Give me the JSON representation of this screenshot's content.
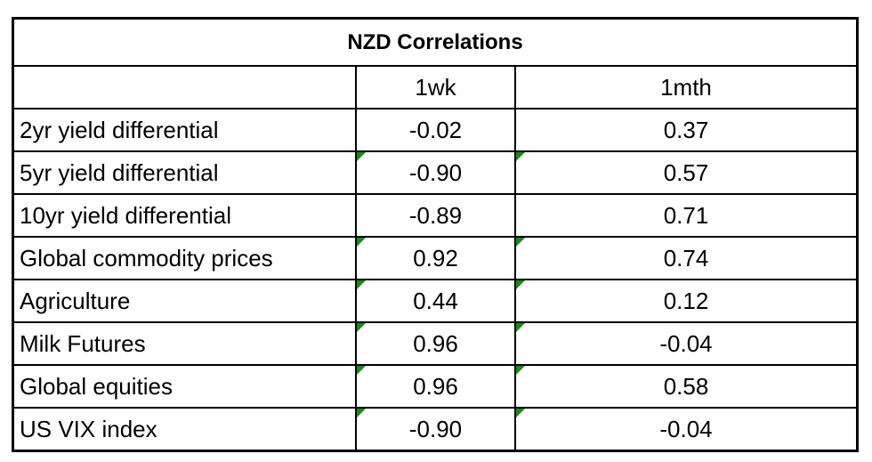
{
  "title": "NZD Correlations",
  "headers": [
    "",
    "1wk",
    "1mth"
  ],
  "rows": [
    {
      "label": "2yr yield differential",
      "wk": "-0.02",
      "mth": "0.37",
      "flag": false
    },
    {
      "label": "5yr yield differential",
      "wk": "-0.90",
      "mth": "0.57",
      "flag": true
    },
    {
      "label": "10yr yield differential",
      "wk": "-0.89",
      "mth": "0.71",
      "flag": false
    },
    {
      "label": "Global commodity prices",
      "wk": "0.92",
      "mth": "0.74",
      "flag": true
    },
    {
      "label": "Agriculture",
      "wk": "0.44",
      "mth": "0.12",
      "flag": true
    },
    {
      "label": "Milk Futures",
      "wk": "0.96",
      "mth": "-0.04",
      "flag": true
    },
    {
      "label": "Global equities",
      "wk": "0.96",
      "mth": "0.58",
      "flag": true
    },
    {
      "label": "US VIX index",
      "wk": "-0.90",
      "mth": "-0.04",
      "flag": true
    }
  ],
  "colors": {
    "indicator": "#1a8a1a"
  }
}
